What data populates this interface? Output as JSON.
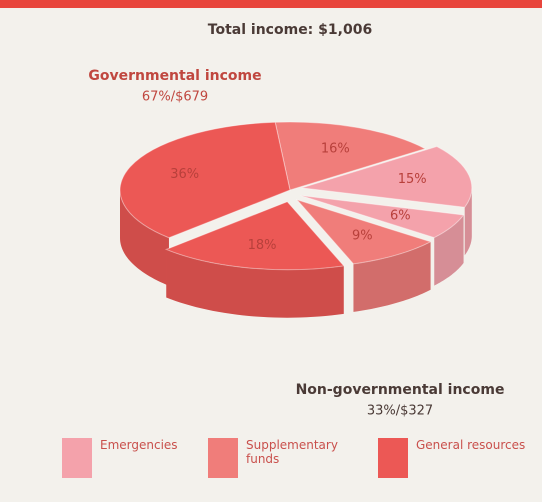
{
  "chart_data": {
    "type": "pie3d",
    "title": "Total income: $1,006",
    "categories": [
      "Emergencies",
      "Supplementary funds",
      "General resources"
    ],
    "colors": [
      "#f4a2ab",
      "#f07d7a",
      "#ec5855"
    ],
    "groups": [
      {
        "name": "Governmental income",
        "label": "67%/$679",
        "values": [
          15,
          16,
          36
        ],
        "value_labels": [
          "15%",
          "16%",
          "36%"
        ]
      },
      {
        "name": "Non-governmental income",
        "label": "33%/$327",
        "values": [
          6,
          9,
          18
        ],
        "value_labels": [
          "6%",
          "9%",
          "18%"
        ]
      }
    ]
  }
}
